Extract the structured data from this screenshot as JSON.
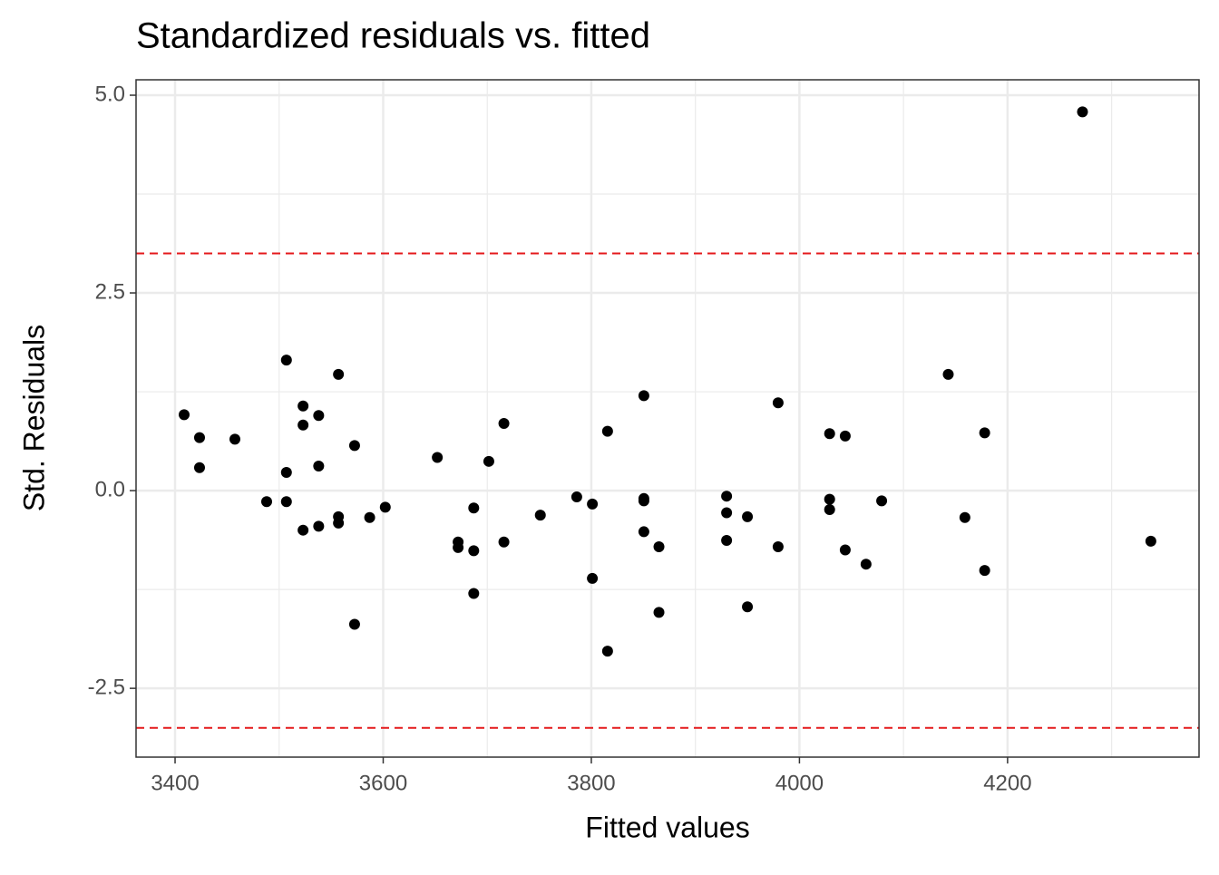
{
  "chart_data": {
    "type": "scatter",
    "title": "Standardized residuals vs. fitted",
    "x_label": "Fitted values",
    "y_label": "Std. Residuals",
    "x": [
      3408.7,
      3423.5,
      3423.5,
      3457.5,
      3488,
      3507,
      3507,
      3507,
      3523,
      3523,
      3523,
      3538,
      3538,
      3538,
      3557,
      3557,
      3557,
      3572.5,
      3572.5,
      3587,
      3602,
      3652,
      3672,
      3672,
      3687,
      3687,
      3687,
      3701.5,
      3716,
      3716,
      3751,
      3786,
      3801,
      3801,
      3815.6,
      3815.6,
      3850.5,
      3850.5,
      3850.5,
      3850.5,
      3865,
      3865,
      3930,
      3930,
      3930,
      3950,
      3950,
      3979.5,
      3979.5,
      4029,
      4029,
      4029,
      4044,
      4044,
      4064,
      4079,
      4143,
      4159,
      4178,
      4178,
      4272,
      4337.7
    ],
    "values": [
      0.96,
      0.67,
      0.29,
      0.65,
      -0.14,
      1.65,
      0.23,
      -0.14,
      1.07,
      0.83,
      -0.5,
      0.95,
      0.31,
      -0.45,
      1.47,
      -0.33,
      -0.41,
      0.57,
      -1.69,
      -0.34,
      -0.21,
      0.42,
      -0.65,
      -0.72,
      -0.22,
      -0.76,
      -1.3,
      0.37,
      0.85,
      -0.65,
      -0.31,
      -0.08,
      -0.17,
      -1.11,
      0.75,
      -2.03,
      1.2,
      -0.1,
      -0.13,
      -0.52,
      -0.71,
      -1.54,
      -0.07,
      -0.28,
      -0.63,
      -0.33,
      -1.47,
      1.11,
      -0.71,
      0.72,
      -0.11,
      -0.24,
      0.69,
      -0.75,
      -0.93,
      -0.13,
      1.47,
      -0.34,
      0.73,
      -1.01,
      4.79,
      -0.64
    ],
    "color": "#000000",
    "xlim": [
      3362.5,
      4384
    ],
    "ylim": [
      -3.37,
      5.195
    ],
    "xticks": [
      3400,
      3600,
      3800,
      4000,
      4200
    ],
    "yticks": [
      {
        "value": 5,
        "label": "5.0"
      },
      2.5,
      {
        "value": 0,
        "label": "0.0"
      },
      -2.5
    ],
    "grid": true,
    "minor_grid": true,
    "hlines": [
      3,
      -3
    ],
    "hline_color": "#e41a1c"
  }
}
